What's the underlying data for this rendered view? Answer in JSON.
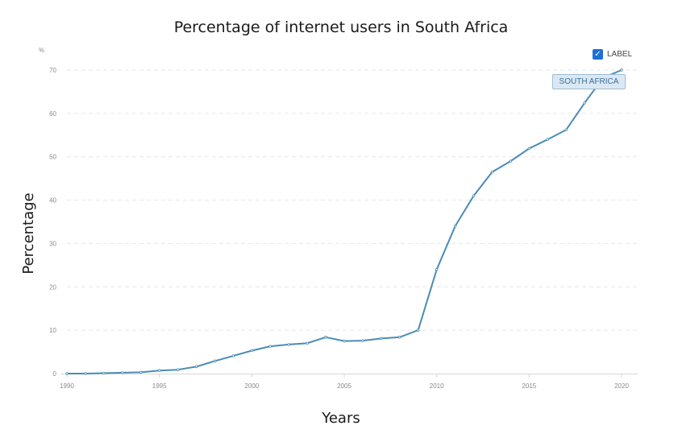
{
  "colors": {
    "series": "#4a8cb5",
    "checkbox": "#1e6fd9",
    "tag_background": "#dbe8f3",
    "tag_text": "#3a6f98"
  },
  "legend": {
    "checkbox_icon": "checkmark-icon",
    "checked": true,
    "label": "LABEL"
  },
  "series_tag": "SOUTH AFRICA",
  "chart_data": {
    "type": "line",
    "title": "Percentage of internet users in South Africa",
    "xlabel": "Years",
    "ylabel": "Percentage",
    "y_unit": "%",
    "xlim": [
      1990,
      2020
    ],
    "ylim": [
      0,
      70
    ],
    "x_ticks": [
      1990,
      1995,
      2000,
      2005,
      2010,
      2015,
      2020
    ],
    "y_ticks": [
      0,
      10,
      20,
      30,
      40,
      50,
      60,
      70
    ],
    "grid": true,
    "legend_position": "top-right",
    "x": [
      1990,
      1991,
      1992,
      1993,
      1994,
      1995,
      1996,
      1997,
      1998,
      1999,
      2000,
      2001,
      2002,
      2003,
      2004,
      2005,
      2006,
      2007,
      2008,
      2009,
      2010,
      2011,
      2012,
      2013,
      2014,
      2015,
      2016,
      2017,
      2018,
      2019,
      2020
    ],
    "series": [
      {
        "name": "SOUTH AFRICA",
        "values": [
          0,
          0,
          0.1,
          0.2,
          0.3,
          0.7,
          0.9,
          1.6,
          2.9,
          4.1,
          5.3,
          6.3,
          6.7,
          7.0,
          8.4,
          7.5,
          7.6,
          8.1,
          8.4,
          10.0,
          24.0,
          34.0,
          41.0,
          46.5,
          49.0,
          51.9,
          54.0,
          56.2,
          62.4,
          68.2,
          70.0
        ]
      }
    ]
  }
}
